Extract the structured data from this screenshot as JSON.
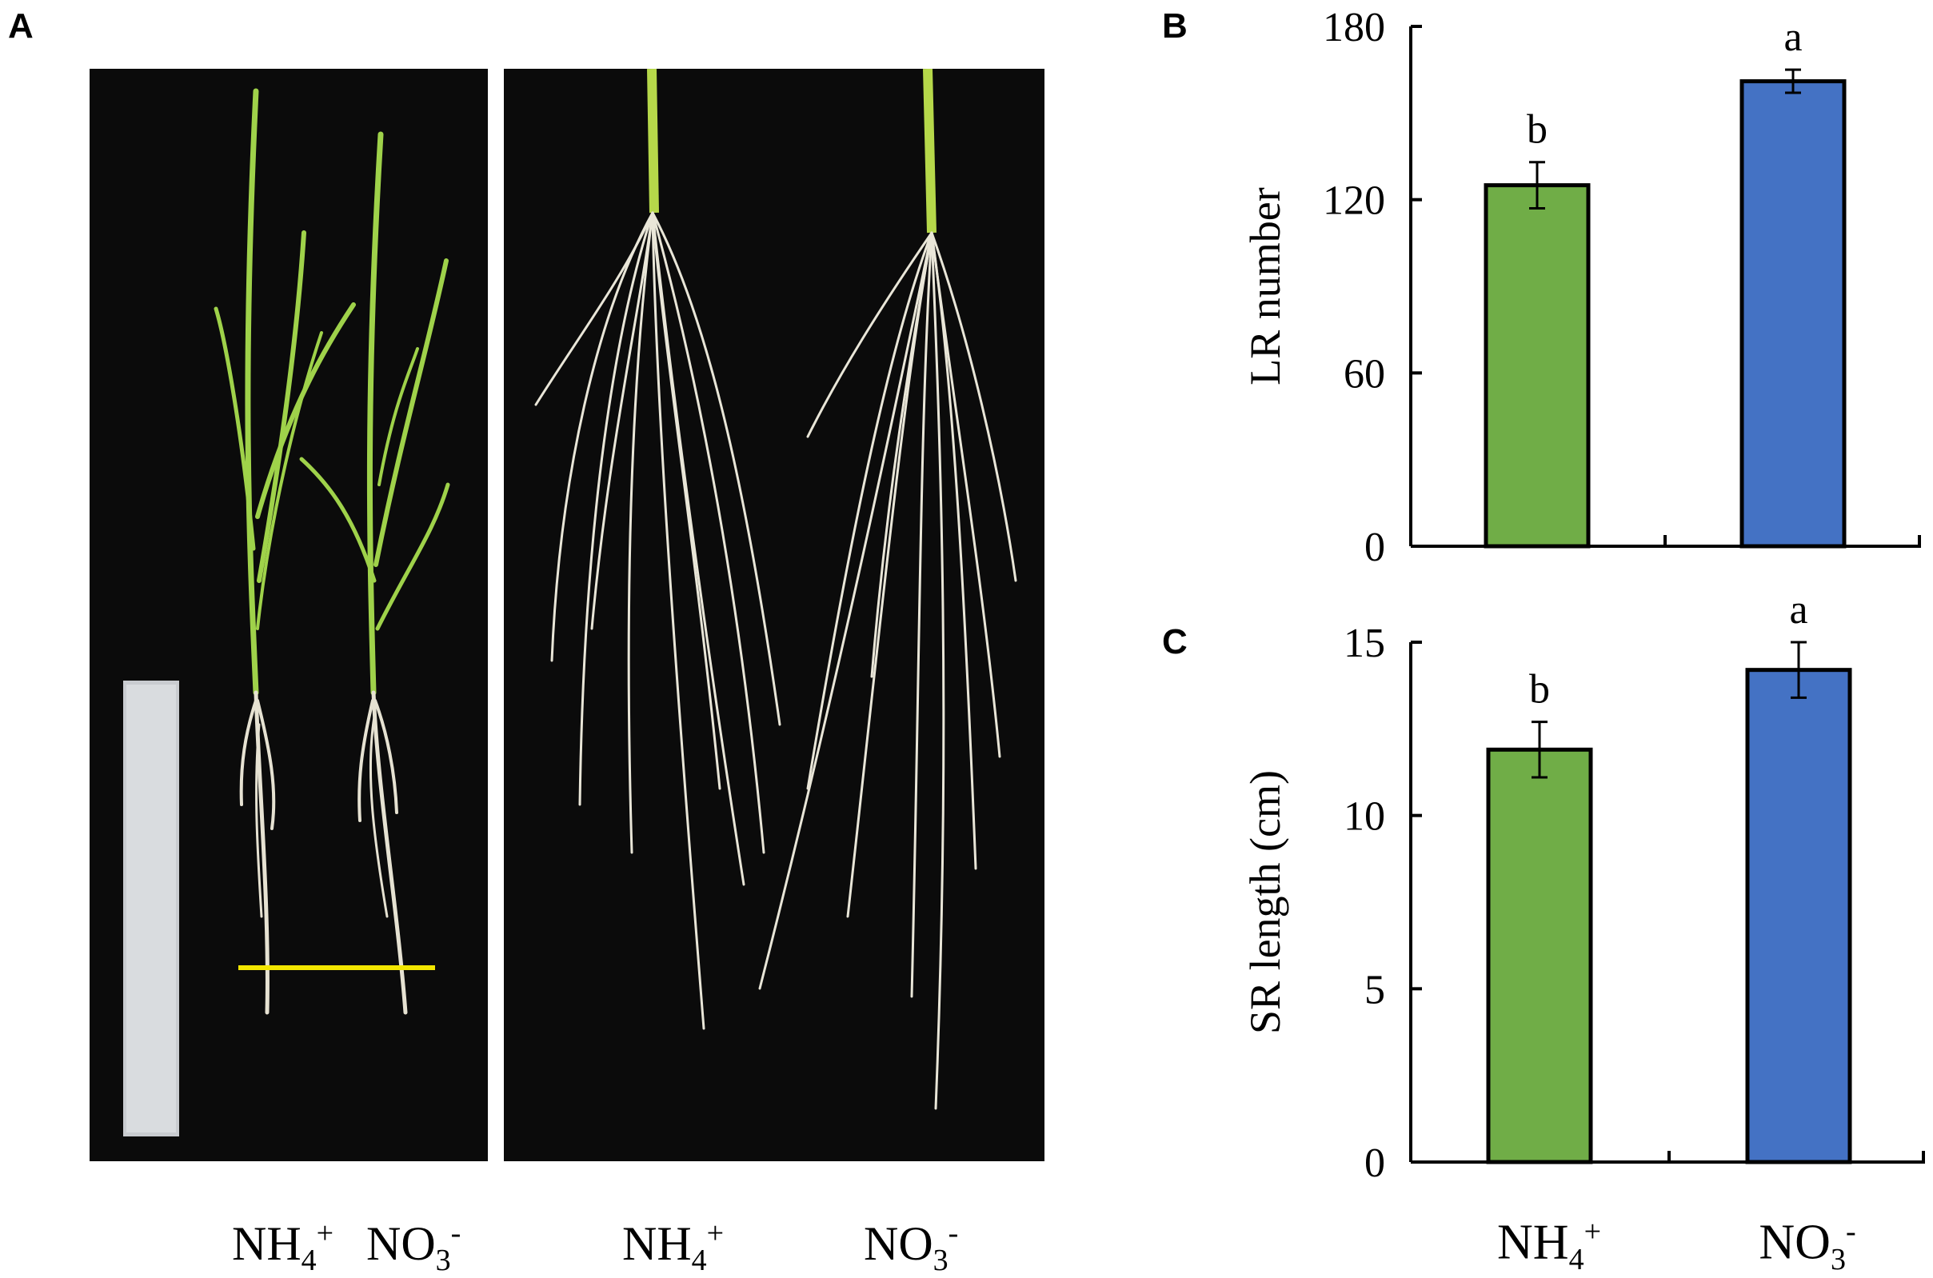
{
  "panel_labels": {
    "a": "A",
    "b": "B",
    "c": "C"
  },
  "photo_labels": {
    "left_1": {
      "base": "NH",
      "sub": "4",
      "sup": "+"
    },
    "left_2": {
      "base": "NO",
      "sub": "3",
      "sup": "-"
    },
    "right_1": {
      "base": "NH",
      "sub": "4",
      "sup": "+"
    },
    "right_2": {
      "base": "NO",
      "sub": "3",
      "sup": "-"
    }
  },
  "colors": {
    "nh4": "#70ad47",
    "no3": "#4472c4",
    "scale_bar": "#f2e600",
    "photo_bg": "#0b0b0b"
  },
  "chart_data": [
    {
      "type": "bar",
      "panel": "B",
      "categories": [
        "NH4+",
        "NO3-"
      ],
      "values": [
        125,
        161
      ],
      "errors": [
        8,
        4
      ],
      "significance": [
        "b",
        "a"
      ],
      "ylabel": "LR number",
      "ylim": [
        0,
        180
      ],
      "yticks": [
        0,
        60,
        120,
        180
      ]
    },
    {
      "type": "bar",
      "panel": "C",
      "categories": [
        "NH4+",
        "NO3-"
      ],
      "values": [
        11.9,
        14.2
      ],
      "errors": [
        0.8,
        0.8
      ],
      "significance": [
        "b",
        "a"
      ],
      "ylabel": "SR length (cm)",
      "ylim": [
        0,
        15
      ],
      "yticks": [
        0,
        5,
        10,
        15
      ]
    }
  ],
  "x_labels": [
    {
      "base": "NH",
      "sub": "4",
      "sup": "+"
    },
    {
      "base": "NO",
      "sub": "3",
      "sup": "-"
    }
  ]
}
